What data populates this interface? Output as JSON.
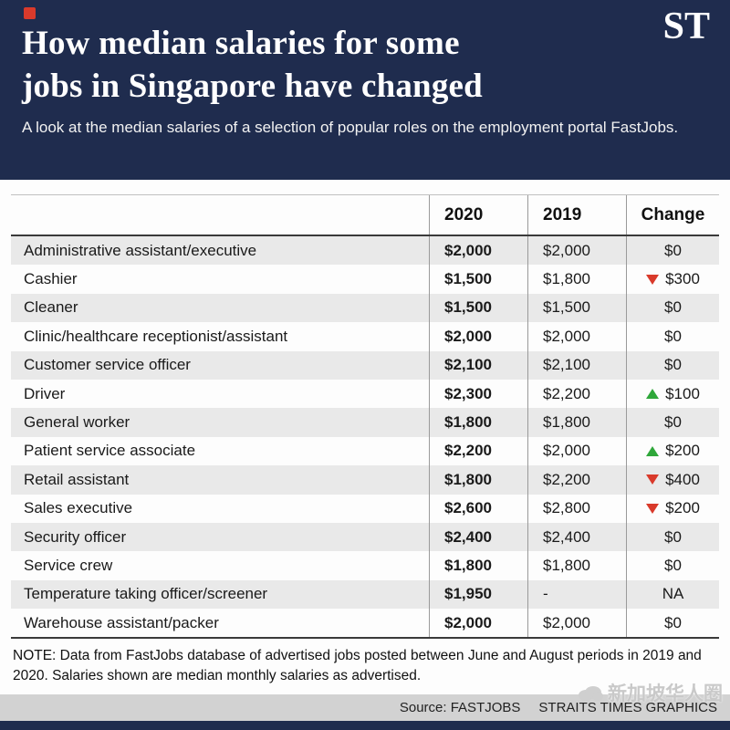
{
  "header": {
    "title_lines": [
      "How median salaries for some",
      "jobs in Singapore have changed"
    ],
    "logo": "ST",
    "subtitle": "A look at the median salaries of a selection of popular roles on the employment portal FastJobs."
  },
  "table": {
    "headers": {
      "y2020": "2020",
      "y2019": "2019",
      "change": "Change"
    }
  },
  "chart_data": {
    "type": "table",
    "title": "How median salaries for some jobs in Singapore have changed",
    "columns": [
      "Job",
      "2020",
      "2019",
      "Change"
    ],
    "rows": [
      {
        "job": "Administrative assistant/executive",
        "y2020": "$2,000",
        "y2019": "$2,000",
        "change": "$0",
        "direction": "none"
      },
      {
        "job": "Cashier",
        "y2020": "$1,500",
        "y2019": "$1,800",
        "change": "$300",
        "direction": "down"
      },
      {
        "job": "Cleaner",
        "y2020": "$1,500",
        "y2019": "$1,500",
        "change": "$0",
        "direction": "none"
      },
      {
        "job": "Clinic/healthcare receptionist/assistant",
        "y2020": "$2,000",
        "y2019": "$2,000",
        "change": "$0",
        "direction": "none"
      },
      {
        "job": "Customer service officer",
        "y2020": "$2,100",
        "y2019": "$2,100",
        "change": "$0",
        "direction": "none"
      },
      {
        "job": "Driver",
        "y2020": "$2,300",
        "y2019": "$2,200",
        "change": "$100",
        "direction": "up"
      },
      {
        "job": "General worker",
        "y2020": "$1,800",
        "y2019": "$1,800",
        "change": "$0",
        "direction": "none"
      },
      {
        "job": "Patient service associate",
        "y2020": "$2,200",
        "y2019": "$2,000",
        "change": "$200",
        "direction": "up"
      },
      {
        "job": "Retail assistant",
        "y2020": "$1,800",
        "y2019": "$2,200",
        "change": "$400",
        "direction": "down"
      },
      {
        "job": "Sales executive",
        "y2020": "$2,600",
        "y2019": "$2,800",
        "change": "$200",
        "direction": "down"
      },
      {
        "job": "Security officer",
        "y2020": "$2,400",
        "y2019": "$2,400",
        "change": "$0",
        "direction": "none"
      },
      {
        "job": "Service crew",
        "y2020": "$1,800",
        "y2019": "$1,800",
        "change": "$0",
        "direction": "none"
      },
      {
        "job": "Temperature taking officer/screener",
        "y2020": "$1,950",
        "y2019": "-",
        "change": "NA",
        "direction": "none"
      },
      {
        "job": "Warehouse assistant/packer",
        "y2020": "$2,000",
        "y2019": "$2,000",
        "change": "$0",
        "direction": "none"
      }
    ]
  },
  "footer": {
    "note": "NOTE: Data from FastJobs database of advertised jobs posted between June and August periods in 2019 and 2020. Salaries shown are median monthly salaries as advertised.",
    "source": "Source: FASTJOBS",
    "credit": "STRAITS TIMES GRAPHICS",
    "watermark": "新加坡华人圈"
  },
  "colors": {
    "navy": "#1f2c4e",
    "down_red": "#d93a2b",
    "up_green": "#2fa73a",
    "row_alt": "#e9e9e9"
  }
}
